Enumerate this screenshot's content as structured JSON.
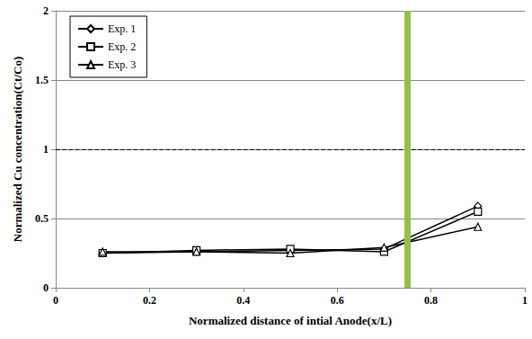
{
  "chart_data": {
    "type": "line",
    "x_label": "Normalized distance of intial Anode(x/L)",
    "y_label": "Normalized Cu concentration(Ct/Co)",
    "x": [
      0.1,
      0.3,
      0.5,
      0.7,
      0.9
    ],
    "series": [
      {
        "name": "Exp. 1",
        "color": "#000000",
        "marker": "diamond",
        "values": [
          0.25,
          0.26,
          0.27,
          0.28,
          0.59
        ]
      },
      {
        "name": "Exp. 2",
        "color": "#000000",
        "marker": "square",
        "values": [
          0.25,
          0.27,
          0.28,
          0.26,
          0.55
        ]
      },
      {
        "name": "Exp. 3",
        "color": "#000000",
        "marker": "triangle",
        "values": [
          0.26,
          0.26,
          0.25,
          0.29,
          0.44
        ]
      }
    ],
    "hline": 1,
    "vline": 0.75,
    "xlim": [
      0,
      1
    ],
    "xticks": [
      0,
      0.2,
      0.4,
      0.6,
      0.8,
      1
    ],
    "ylim": [
      0,
      2
    ],
    "yticks": [
      0,
      0.5,
      1,
      1.5,
      2
    ],
    "grid": true,
    "legend": "upper left"
  }
}
